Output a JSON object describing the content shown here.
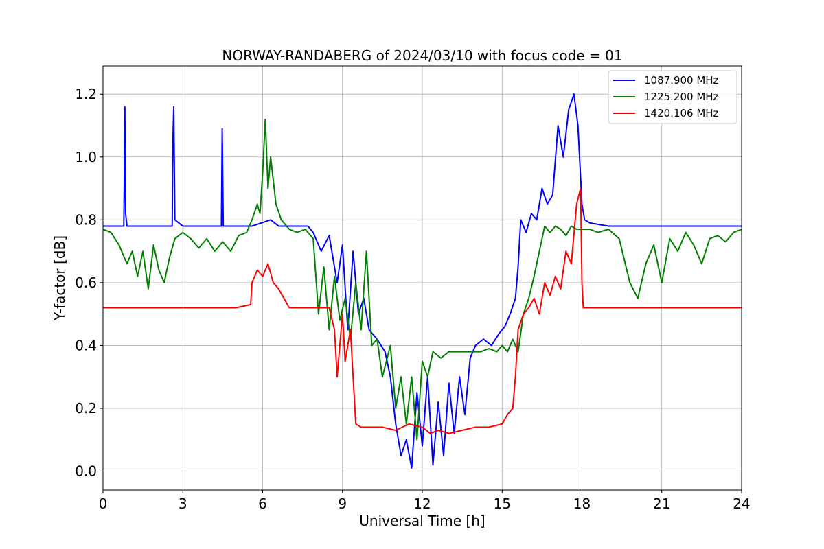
{
  "chart_data": {
    "type": "line",
    "title": "NORWAY-RANDABERG of 2024/03/10 with focus code = 01",
    "xlabel": "Universal Time [h]",
    "ylabel": "Y-factor [dB]",
    "xlim": [
      0,
      24
    ],
    "ylim": [
      -0.06,
      1.29
    ],
    "xticks": [
      "0",
      "3",
      "6",
      "9",
      "12",
      "15",
      "18",
      "21",
      "24"
    ],
    "yticks": [
      "0.0",
      "0.2",
      "0.4",
      "0.6",
      "0.8",
      "1.0",
      "1.2"
    ],
    "grid": true,
    "legend_position": "top-right",
    "series": [
      {
        "name": "1087.900 MHz",
        "color": "#0000ff",
        "x": [
          0,
          0.78,
          0.8,
          0.82,
          0.85,
          0.9,
          1.5,
          2.6,
          2.63,
          2.66,
          2.7,
          3.0,
          4.45,
          4.48,
          4.52,
          5.6,
          6.3,
          6.6,
          7.0,
          7.7,
          7.9,
          8.2,
          8.5,
          8.8,
          9.0,
          9.2,
          9.4,
          9.6,
          9.8,
          10.0,
          10.3,
          10.6,
          10.8,
          11.0,
          11.2,
          11.4,
          11.6,
          11.8,
          12.0,
          12.2,
          12.4,
          12.6,
          12.8,
          13.0,
          13.2,
          13.4,
          13.6,
          13.8,
          14.0,
          14.3,
          14.6,
          14.9,
          15.1,
          15.3,
          15.5,
          15.6,
          15.7,
          15.9,
          16.1,
          16.3,
          16.5,
          16.7,
          16.9,
          17.1,
          17.3,
          17.5,
          17.7,
          17.85,
          18.0,
          18.1,
          18.3,
          19,
          20,
          21,
          22,
          23,
          24
        ],
        "y": [
          0.78,
          0.78,
          0.92,
          1.16,
          0.82,
          0.78,
          0.78,
          0.78,
          1.06,
          1.16,
          0.8,
          0.78,
          0.78,
          1.09,
          0.78,
          0.78,
          0.8,
          0.78,
          0.78,
          0.78,
          0.76,
          0.7,
          0.75,
          0.6,
          0.72,
          0.45,
          0.7,
          0.5,
          0.55,
          0.45,
          0.42,
          0.38,
          0.3,
          0.15,
          0.05,
          0.1,
          0.01,
          0.25,
          0.08,
          0.3,
          0.02,
          0.22,
          0.05,
          0.28,
          0.12,
          0.3,
          0.18,
          0.36,
          0.4,
          0.42,
          0.4,
          0.44,
          0.46,
          0.5,
          0.55,
          0.65,
          0.8,
          0.76,
          0.82,
          0.8,
          0.9,
          0.85,
          0.88,
          1.1,
          1.0,
          1.15,
          1.2,
          1.1,
          0.85,
          0.8,
          0.79,
          0.78,
          0.78,
          0.78,
          0.78,
          0.78,
          0.78
        ]
      },
      {
        "name": "1225.200 MHz",
        "color": "#008000",
        "x": [
          0,
          0.3,
          0.6,
          0.9,
          1.1,
          1.3,
          1.5,
          1.7,
          1.9,
          2.1,
          2.3,
          2.5,
          2.7,
          3.0,
          3.3,
          3.6,
          3.9,
          4.2,
          4.5,
          4.8,
          5.1,
          5.4,
          5.6,
          5.8,
          5.9,
          6.0,
          6.1,
          6.2,
          6.3,
          6.5,
          6.7,
          7.0,
          7.3,
          7.6,
          7.9,
          8.1,
          8.3,
          8.5,
          8.7,
          8.9,
          9.1,
          9.3,
          9.5,
          9.7,
          9.9,
          10.1,
          10.3,
          10.5,
          10.8,
          11.0,
          11.2,
          11.4,
          11.6,
          11.8,
          12.0,
          12.2,
          12.4,
          12.7,
          13.0,
          13.3,
          13.6,
          13.9,
          14.2,
          14.5,
          14.8,
          15.0,
          15.2,
          15.4,
          15.6,
          15.8,
          16.0,
          16.2,
          16.4,
          16.6,
          16.8,
          17.0,
          17.2,
          17.4,
          17.6,
          17.8,
          18.0,
          18.3,
          18.6,
          19.0,
          19.4,
          19.8,
          20.1,
          20.4,
          20.7,
          21.0,
          21.3,
          21.6,
          21.9,
          22.2,
          22.5,
          22.8,
          23.1,
          23.4,
          23.7,
          24
        ],
        "y": [
          0.77,
          0.76,
          0.72,
          0.66,
          0.7,
          0.62,
          0.7,
          0.58,
          0.72,
          0.64,
          0.6,
          0.68,
          0.74,
          0.76,
          0.74,
          0.71,
          0.74,
          0.7,
          0.73,
          0.7,
          0.75,
          0.76,
          0.8,
          0.85,
          0.82,
          0.95,
          1.12,
          0.9,
          1.0,
          0.85,
          0.8,
          0.77,
          0.76,
          0.77,
          0.74,
          0.5,
          0.65,
          0.45,
          0.62,
          0.48,
          0.55,
          0.42,
          0.6,
          0.45,
          0.7,
          0.4,
          0.42,
          0.3,
          0.4,
          0.2,
          0.3,
          0.15,
          0.3,
          0.1,
          0.35,
          0.3,
          0.38,
          0.36,
          0.38,
          0.38,
          0.38,
          0.38,
          0.38,
          0.39,
          0.38,
          0.4,
          0.38,
          0.42,
          0.38,
          0.5,
          0.55,
          0.62,
          0.7,
          0.78,
          0.76,
          0.78,
          0.77,
          0.75,
          0.78,
          0.77,
          0.77,
          0.77,
          0.76,
          0.77,
          0.74,
          0.6,
          0.55,
          0.66,
          0.72,
          0.6,
          0.74,
          0.7,
          0.76,
          0.72,
          0.66,
          0.74,
          0.75,
          0.73,
          0.76,
          0.77
        ]
      },
      {
        "name": "1420.106 MHz",
        "color": "#ff0000",
        "x": [
          0,
          1,
          2,
          3,
          4,
          5,
          5.55,
          5.6,
          5.8,
          6.0,
          6.2,
          6.4,
          6.6,
          6.8,
          7.0,
          7.5,
          8.0,
          8.5,
          8.7,
          8.8,
          9.0,
          9.1,
          9.3,
          9.4,
          9.5,
          9.7,
          10.0,
          10.5,
          11.0,
          11.5,
          12.0,
          12.3,
          12.6,
          13.0,
          13.5,
          14.0,
          14.5,
          15.0,
          15.2,
          15.4,
          15.5,
          15.6,
          15.8,
          16.0,
          16.2,
          16.4,
          16.6,
          16.8,
          17.0,
          17.2,
          17.4,
          17.6,
          17.8,
          17.95,
          18.0,
          18.05,
          18.5,
          19,
          20,
          21,
          22,
          23,
          24
        ],
        "y": [
          0.52,
          0.52,
          0.52,
          0.52,
          0.52,
          0.52,
          0.53,
          0.6,
          0.64,
          0.62,
          0.66,
          0.6,
          0.58,
          0.55,
          0.52,
          0.52,
          0.52,
          0.52,
          0.45,
          0.3,
          0.5,
          0.35,
          0.45,
          0.3,
          0.15,
          0.14,
          0.14,
          0.14,
          0.13,
          0.15,
          0.14,
          0.12,
          0.13,
          0.12,
          0.13,
          0.14,
          0.14,
          0.15,
          0.18,
          0.2,
          0.3,
          0.45,
          0.5,
          0.52,
          0.55,
          0.5,
          0.6,
          0.56,
          0.62,
          0.58,
          0.7,
          0.66,
          0.85,
          0.9,
          0.6,
          0.52,
          0.52,
          0.52,
          0.52,
          0.52,
          0.52,
          0.52,
          0.52
        ]
      }
    ]
  }
}
